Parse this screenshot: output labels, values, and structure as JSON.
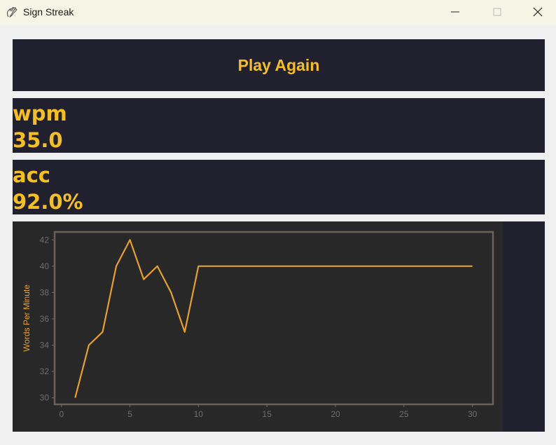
{
  "window": {
    "title": "Sign Streak",
    "icon": "hand-sign-icon"
  },
  "play_button": {
    "label": "Play Again"
  },
  "stats": {
    "wpm": {
      "label": "wpm",
      "value": "35.0"
    },
    "acc": {
      "label": "acc",
      "value": "92.0%"
    }
  },
  "colors": {
    "panel_bg": "#20202f",
    "accent": "#f5c01e",
    "chart_bg": "#282828",
    "line": "#e6a12a",
    "frame": "#6b6156"
  },
  "chart_data": {
    "type": "line",
    "title": "",
    "xlabel": "",
    "ylabel": "Words Per Minute",
    "x": [
      1,
      2,
      3,
      4,
      5,
      6,
      7,
      8,
      9,
      10,
      30
    ],
    "series": [
      {
        "values": [
          30,
          34,
          35,
          40,
          42,
          39,
          40,
          38,
          35,
          40,
          40
        ]
      }
    ],
    "xlim": [
      -0.5,
      31.5
    ],
    "ylim": [
      29.5,
      42.6
    ],
    "xticks": [
      0,
      5,
      10,
      15,
      20,
      25,
      30
    ],
    "yticks": [
      30,
      32,
      34,
      36,
      38,
      40,
      42
    ],
    "grid": false,
    "legend": "none"
  }
}
